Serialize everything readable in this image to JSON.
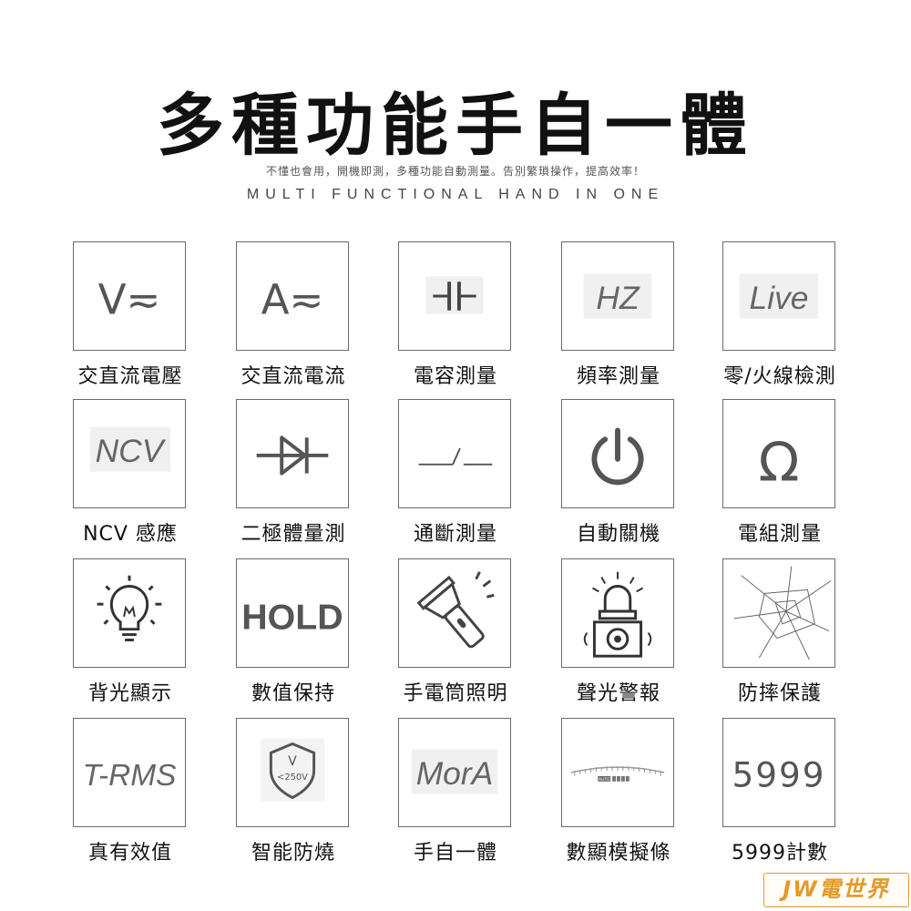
{
  "header": {
    "title": "多種功能手自一體",
    "subtitle": "不懂也會用，開機即測，多種功能自動測量。告別繁瑣操作，提高效率！",
    "subtitle_en": "MULTI FUNCTIONAL HAND IN ONE"
  },
  "features": [
    {
      "icon": "voltage-ac-dc-icon",
      "icon_text": "V≂",
      "label": "交直流電壓"
    },
    {
      "icon": "current-ac-dc-icon",
      "icon_text": "A≂",
      "label": "交直流電流"
    },
    {
      "icon": "capacitor-icon",
      "label": "電容測量"
    },
    {
      "icon": "frequency-icon",
      "icon_text": "HZ",
      "label": "頻率測量"
    },
    {
      "icon": "live-wire-icon",
      "icon_text": "Live",
      "label": "零/火線檢測"
    },
    {
      "icon": "ncv-icon",
      "icon_text": "NCV",
      "label": "NCV  感應"
    },
    {
      "icon": "diode-icon",
      "label": "二極體量測"
    },
    {
      "icon": "continuity-switch-icon",
      "label": "通斷測量"
    },
    {
      "icon": "power-off-icon",
      "label": "自動關機"
    },
    {
      "icon": "ohm-icon",
      "icon_text": "Ω",
      "label": "電組測量"
    },
    {
      "icon": "backlight-bulb-icon",
      "label": "背光顯示"
    },
    {
      "icon": "hold-icon",
      "icon_text": "HOLD",
      "label": "數值保持"
    },
    {
      "icon": "flashlight-icon",
      "label": "手電筒照明"
    },
    {
      "icon": "alarm-siren-icon",
      "label": "聲光警報"
    },
    {
      "icon": "shatter-glass-icon",
      "label": "防摔保護"
    },
    {
      "icon": "true-rms-icon",
      "icon_text": "T-RMS",
      "label": "真有效值"
    },
    {
      "icon": "shield-icon",
      "icon_text": "V",
      "icon_subtext": "<250V",
      "label": "智能防燒"
    },
    {
      "icon": "manual-auto-icon",
      "icon_text": "MorA",
      "label": "手自一體"
    },
    {
      "icon": "analog-bar-icon",
      "icon_text": "AUTO",
      "label": "數顯模擬條"
    },
    {
      "icon": "counts-icon",
      "icon_text": "5999",
      "label": "5999計數"
    }
  ],
  "watermark": {
    "text": "JW電世界"
  },
  "colors": {
    "icon_stroke": "#555555",
    "box_border": "#6b6b6b",
    "watermark": "#e39a2a"
  }
}
